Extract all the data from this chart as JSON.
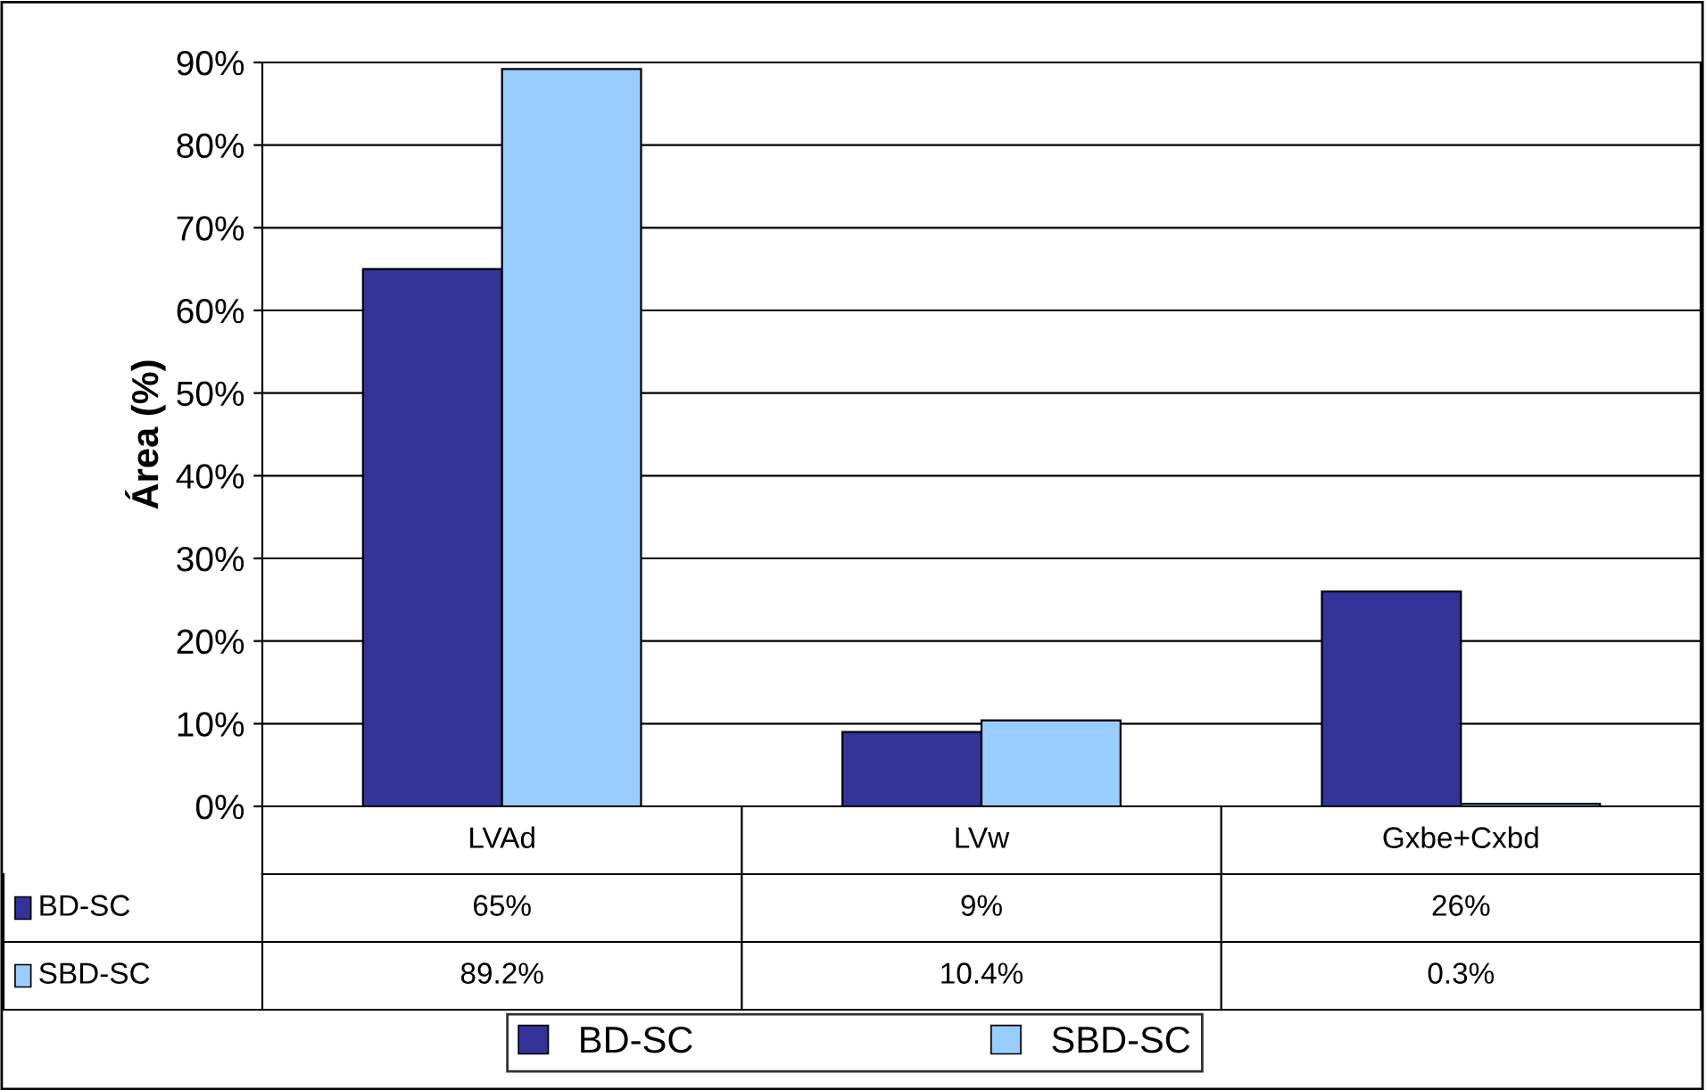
{
  "chart_data": {
    "type": "bar",
    "ylabel": "Área (%)",
    "categories": [
      "LVAd",
      "LVw",
      "Gxbe+Cxbd"
    ],
    "series": [
      {
        "name": "BD-SC",
        "color": "#333399",
        "values": [
          65,
          9,
          26
        ],
        "value_labels": [
          "65%",
          "9%",
          "26%"
        ]
      },
      {
        "name": "SBD-SC",
        "color": "#99ccff",
        "values": [
          89.2,
          10.4,
          0.3
        ],
        "value_labels": [
          "89.2%",
          "10.4%",
          "0.3%"
        ]
      }
    ],
    "ylim": [
      0,
      90
    ],
    "yticks": [
      {
        "value": 0,
        "label": "0%"
      },
      {
        "value": 10,
        "label": "10%"
      },
      {
        "value": 20,
        "label": "20%"
      },
      {
        "value": 30,
        "label": "30%"
      },
      {
        "value": 40,
        "label": "40%"
      },
      {
        "value": 50,
        "label": "50%"
      },
      {
        "value": 60,
        "label": "60%"
      },
      {
        "value": 70,
        "label": "70%"
      },
      {
        "value": 80,
        "label": "80%"
      },
      {
        "value": 90,
        "label": "90%"
      }
    ],
    "grid": "y",
    "legend": "bottom"
  }
}
